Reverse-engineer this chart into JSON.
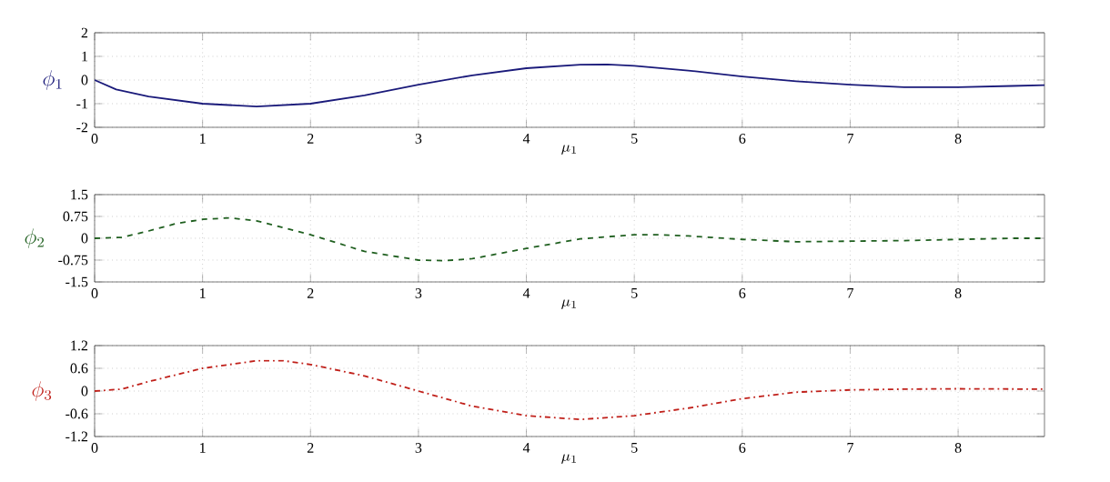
{
  "chart_data": [
    {
      "type": "line",
      "xlabel": "\\mu_1",
      "ylabel": "\\phi_1",
      "xlim": [
        0,
        8.8
      ],
      "ylim": [
        -2,
        2
      ],
      "xticks": [
        0,
        1,
        2,
        3,
        4,
        5,
        6,
        7,
        8
      ],
      "yticks": [
        -2,
        -1,
        0,
        1,
        2
      ],
      "grid": true,
      "line_style": "solid",
      "x": [
        0,
        0.2,
        0.5,
        1,
        1.5,
        2,
        2.5,
        3,
        3.5,
        4,
        4.5,
        4.75,
        5,
        5.5,
        6,
        6.5,
        7,
        7.5,
        8,
        8.5,
        8.8
      ],
      "series": [
        {
          "color": "#1a1a7a",
          "values": [
            0,
            -0.4,
            -0.7,
            -1.0,
            -1.12,
            -1.0,
            -0.65,
            -0.2,
            0.2,
            0.5,
            0.65,
            0.66,
            0.6,
            0.4,
            0.15,
            -0.05,
            -0.2,
            -0.3,
            -0.3,
            -0.25,
            -0.22
          ]
        }
      ]
    },
    {
      "type": "line",
      "xlabel": "\\mu_1",
      "ylabel": "\\phi_2",
      "xlim": [
        0,
        8.8
      ],
      "ylim": [
        -1.5,
        1.5
      ],
      "xticks": [
        0,
        1,
        2,
        3,
        4,
        5,
        6,
        7,
        8
      ],
      "yticks": [
        -1.5,
        -0.75,
        0,
        0.75,
        1.5
      ],
      "grid": true,
      "line_style": "dashed",
      "x": [
        0,
        0.25,
        0.5,
        0.75,
        1,
        1.25,
        1.5,
        2,
        2.5,
        3,
        3.25,
        3.5,
        4,
        4.5,
        5,
        5.25,
        5.5,
        6,
        6.5,
        7,
        7.5,
        8,
        8.5,
        8.8
      ],
      "series": [
        {
          "color": "#1f5f1f",
          "values": [
            0,
            0.03,
            0.25,
            0.5,
            0.65,
            0.7,
            0.6,
            0.12,
            -0.45,
            -0.75,
            -0.77,
            -0.7,
            -0.35,
            -0.02,
            0.12,
            0.12,
            0.08,
            -0.04,
            -0.12,
            -0.1,
            -0.08,
            -0.04,
            0,
            0
          ]
        }
      ]
    },
    {
      "type": "line",
      "xlabel": "\\mu_1",
      "ylabel": "\\phi_3",
      "xlim": [
        0,
        8.8
      ],
      "ylim": [
        -1.2,
        1.2
      ],
      "xticks": [
        0,
        1,
        2,
        3,
        4,
        5,
        6,
        7,
        8
      ],
      "yticks": [
        -1.2,
        -0.6,
        0,
        0.6,
        1.2
      ],
      "grid": true,
      "line_style": "dashdot",
      "x": [
        0,
        0.25,
        0.5,
        1,
        1.5,
        1.75,
        2,
        2.5,
        3,
        3.5,
        4,
        4.5,
        5,
        5.5,
        6,
        6.5,
        7,
        7.5,
        8,
        8.8
      ],
      "series": [
        {
          "color": "#c0201a",
          "values": [
            0,
            0.05,
            0.25,
            0.6,
            0.8,
            0.8,
            0.7,
            0.4,
            0,
            -0.4,
            -0.65,
            -0.75,
            -0.65,
            -0.45,
            -0.2,
            -0.03,
            0.03,
            0.05,
            0.06,
            0.05
          ]
        }
      ]
    }
  ]
}
